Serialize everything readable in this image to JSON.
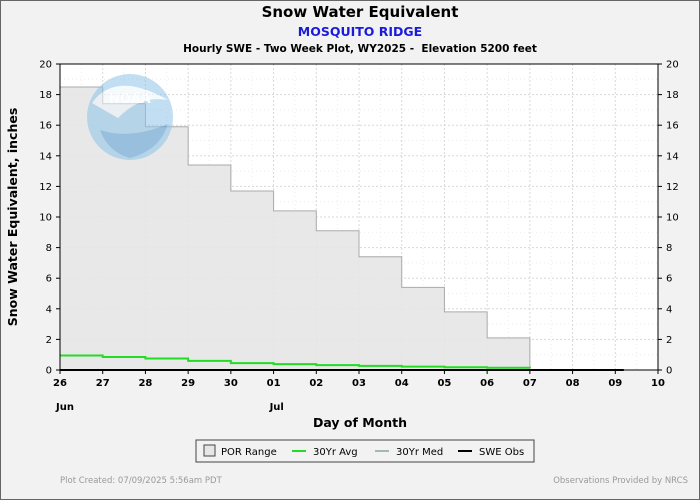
{
  "chart_data": {
    "type": "area",
    "title": "Snow Water Equivalent",
    "subtitle": "MOSQUITO RIDGE",
    "subtitle2": "Hourly SWE - Two Week Plot, WY2025 -  Elevation 5200 feet",
    "xlabel": "Day of Month",
    "ylabel": "Snow Water Equivalent, inches",
    "ylim": [
      0,
      20
    ],
    "xlim": [
      26,
      40
    ],
    "grid": true,
    "legend_position": "bottom",
    "x_tick_labels": [
      "26",
      "27",
      "28",
      "29",
      "30",
      "01",
      "02",
      "03",
      "04",
      "05",
      "06",
      "07",
      "08",
      "09",
      "10"
    ],
    "month_labels": [
      {
        "x": 26,
        "label": "Jun"
      },
      {
        "x": 31,
        "label": "Jul"
      }
    ],
    "y_ticks": [
      0,
      2,
      4,
      6,
      8,
      10,
      12,
      14,
      16,
      18,
      20
    ],
    "colors": {
      "por": "#e6e6e6",
      "por_edge": "#aaaaaa",
      "avg": "#22dd22",
      "med": "#a8b8b0",
      "obs": "#000000",
      "subtitle": "#1a1adb"
    },
    "series": [
      {
        "name": "POR Range",
        "x": [
          26,
          27,
          27,
          28,
          28,
          29,
          29,
          30,
          30,
          31,
          31,
          32,
          32,
          33,
          33,
          34,
          34,
          35,
          35,
          36,
          36,
          37,
          37
        ],
        "values": [
          18.5,
          18.5,
          17.4,
          17.4,
          15.9,
          15.9,
          13.4,
          13.4,
          11.7,
          11.7,
          10.4,
          10.4,
          9.1,
          9.1,
          7.4,
          7.4,
          5.4,
          5.4,
          3.8,
          3.8,
          2.1,
          2.1,
          0
        ]
      },
      {
        "name": "30Yr Avg",
        "x": [
          26,
          27,
          27,
          28,
          28,
          29,
          29,
          30,
          30,
          31,
          31,
          32,
          32,
          33,
          33,
          34,
          34,
          35,
          35,
          36,
          36,
          37,
          37
        ],
        "values": [
          0.95,
          0.95,
          0.85,
          0.85,
          0.75,
          0.75,
          0.6,
          0.6,
          0.45,
          0.45,
          0.38,
          0.38,
          0.32,
          0.32,
          0.27,
          0.27,
          0.22,
          0.22,
          0.18,
          0.18,
          0.15,
          0.15,
          0.12
        ]
      },
      {
        "name": "30Yr Med",
        "x": [
          26,
          37
        ],
        "values": [
          0,
          0
        ]
      },
      {
        "name": "SWE Obs",
        "x": [
          26,
          39.2
        ],
        "values": [
          0,
          0
        ]
      }
    ]
  },
  "footer": {
    "created": "Plot Created: 07/09/2025 5:56am PDT",
    "provided": "Observations Provided by NRCS"
  },
  "logo": {
    "text": "NOAA"
  }
}
